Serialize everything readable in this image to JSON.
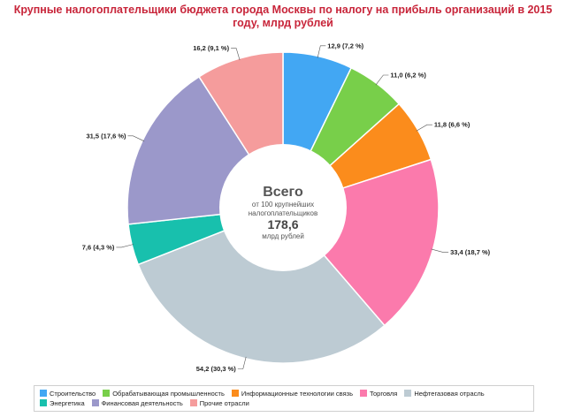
{
  "chart_data": {
    "type": "pie",
    "title": "Крупные налогоплательщики бюджета города Москвы по налогу на прибыль организаций в 2015 году, млрд рублей",
    "center": {
      "line1": "Всего",
      "line2": "от 100 крупнейших",
      "line3": "налогоплательщиков",
      "total": "178,6",
      "unit": "млрд рублей"
    },
    "legend_placement": "bottom",
    "slices": [
      {
        "name": "Строительство",
        "value": 12.9,
        "label": "12,9 (7,2 %)",
        "color": "#42a7f3"
      },
      {
        "name": "Обрабатывающая промышленность",
        "value": 11.0,
        "label": "11,0 (6,2 %)",
        "color": "#78cf4a"
      },
      {
        "name": "Информационные технологии связь",
        "value": 11.8,
        "label": "11,8 (6,6 %)",
        "color": "#fb8c1c"
      },
      {
        "name": "Торговля",
        "value": 33.4,
        "label": "33,4 (18,7 %)",
        "color": "#fb7aac"
      },
      {
        "name": "Нефтегазовая отрасль",
        "value": 54.2,
        "label": "54,2 (30,3 %)",
        "color": "#bdcbd3"
      },
      {
        "name": "Энергетика",
        "value": 7.6,
        "label": "7,6 (4,3 %)",
        "color": "#18c0ad"
      },
      {
        "name": "Финансовая деятельность",
        "value": 31.5,
        "label": "31,5 (17,6 %)",
        "color": "#9b98ca"
      },
      {
        "name": "Прочие отрасли",
        "value": 16.2,
        "label": "16,2 (9,1 %)",
        "color": "#f59c9c"
      }
    ]
  }
}
